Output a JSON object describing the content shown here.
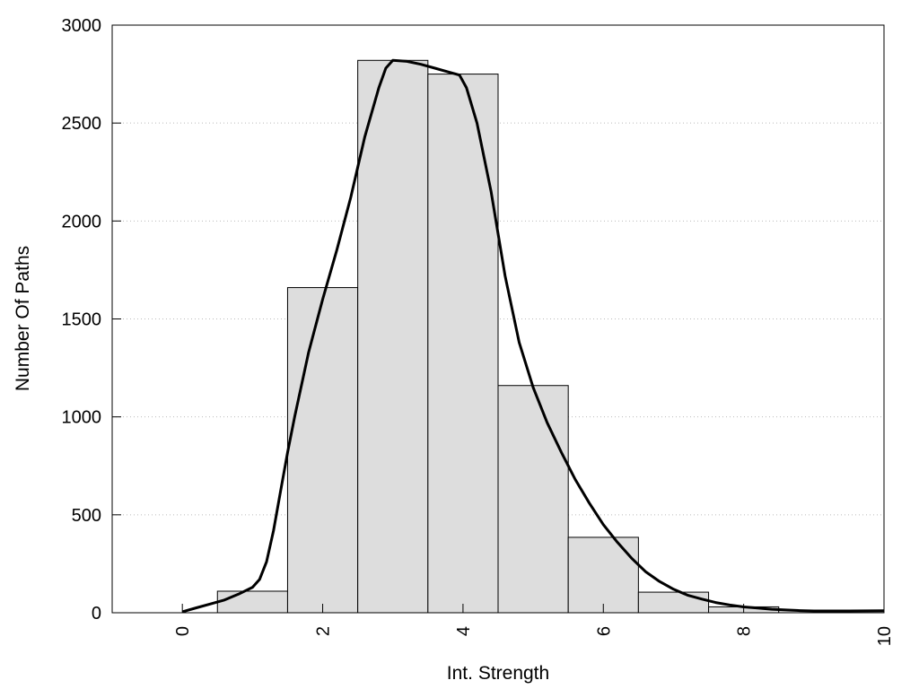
{
  "chart_data": {
    "type": "bar",
    "title": "",
    "xlabel": "Int. Strength",
    "ylabel": "Number Of Paths",
    "xlim": [
      -1,
      10
    ],
    "ylim": [
      0,
      3000
    ],
    "x_ticks": [
      0,
      2,
      4,
      6,
      8,
      10
    ],
    "y_ticks": [
      0,
      500,
      1000,
      1500,
      2000,
      2500,
      3000
    ],
    "x_tick_labels": [
      "0",
      "2",
      "4",
      "6",
      "8",
      "10"
    ],
    "y_tick_labels": [
      "0",
      "500",
      "1000",
      "1500",
      "2000",
      "2500",
      "3000"
    ],
    "grid": "horizontal-dotted",
    "legend": "none",
    "bins": [
      {
        "start": 0.5,
        "end": 1.5,
        "value": 110
      },
      {
        "start": 1.5,
        "end": 2.5,
        "value": 1660
      },
      {
        "start": 2.5,
        "end": 3.5,
        "value": 2820
      },
      {
        "start": 3.5,
        "end": 4.5,
        "value": 2750
      },
      {
        "start": 4.5,
        "end": 5.5,
        "value": 1160
      },
      {
        "start": 5.5,
        "end": 6.5,
        "value": 385
      },
      {
        "start": 6.5,
        "end": 7.5,
        "value": 105
      },
      {
        "start": 7.5,
        "end": 8.5,
        "value": 30
      },
      {
        "start": 8.5,
        "end": 9.5,
        "value": 12
      },
      {
        "start": 9.5,
        "end": 10,
        "value": 10
      }
    ],
    "curve": {
      "x": [
        0,
        0.2,
        0.4,
        0.6,
        0.8,
        1.0,
        1.1,
        1.2,
        1.3,
        1.4,
        1.5,
        1.6,
        1.8,
        2.0,
        2.2,
        2.4,
        2.6,
        2.8,
        2.9,
        3.0,
        3.2,
        3.4,
        3.6,
        3.8,
        3.95,
        4.05,
        4.2,
        4.4,
        4.6,
        4.8,
        5.0,
        5.2,
        5.4,
        5.6,
        5.8,
        6.0,
        6.2,
        6.4,
        6.6,
        6.8,
        7.0,
        7.2,
        7.4,
        7.6,
        7.8,
        8.0,
        8.2,
        8.4,
        8.6,
        8.8,
        9.0,
        9.5,
        10.0
      ],
      "y": [
        5,
        25,
        45,
        65,
        95,
        130,
        170,
        260,
        420,
        620,
        820,
        1000,
        1330,
        1600,
        1850,
        2120,
        2430,
        2680,
        2780,
        2820,
        2815,
        2800,
        2780,
        2760,
        2745,
        2680,
        2500,
        2150,
        1720,
        1380,
        1150,
        970,
        820,
        680,
        560,
        450,
        360,
        280,
        210,
        160,
        120,
        90,
        70,
        52,
        40,
        30,
        24,
        18,
        14,
        11,
        9,
        9,
        10
      ]
    }
  }
}
